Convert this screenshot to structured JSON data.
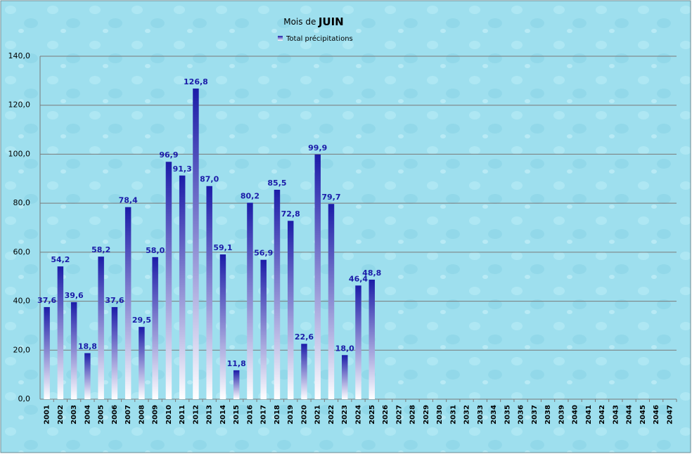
{
  "chart_data": {
    "type": "bar",
    "title": [
      "Mois de",
      "JUIN"
    ],
    "categories": [
      "2001",
      "2002",
      "2003",
      "2004",
      "2005",
      "2006",
      "2007",
      "2008",
      "2009",
      "2010",
      "2011",
      "2012",
      "2013",
      "2014",
      "2015",
      "2016",
      "2017",
      "2018",
      "2019",
      "2020",
      "2021",
      "2022",
      "2023",
      "2024",
      "2025",
      "2026",
      "2027",
      "2028",
      "2029",
      "2030",
      "2031",
      "2032",
      "2033",
      "2034",
      "2035",
      "2036",
      "2037",
      "2038",
      "2039",
      "2040",
      "2041",
      "2042",
      "2043",
      "2044",
      "2045",
      "2046",
      "2047"
    ],
    "series": [
      {
        "name": "Total précipitations",
        "color": "#1c1ca8",
        "values": [
          37.6,
          54.2,
          39.6,
          18.8,
          58.2,
          37.6,
          78.4,
          29.5,
          58.0,
          96.9,
          91.3,
          126.8,
          87.0,
          59.1,
          11.8,
          80.2,
          56.9,
          85.5,
          72.8,
          22.6,
          99.9,
          79.7,
          18.0,
          46.4,
          48.8,
          null,
          null,
          null,
          null,
          null,
          null,
          null,
          null,
          null,
          null,
          null,
          null,
          null,
          null,
          null,
          null,
          null,
          null,
          null,
          null,
          null,
          null
        ],
        "value_labels": [
          "37,6",
          "54,2",
          "39,6",
          "18,8",
          "58,2",
          "37,6",
          "78,4",
          "29,5",
          "58,0",
          "96,9",
          "91,3",
          "126,8",
          "87,0",
          "59,1",
          "11,8",
          "80,2",
          "56,9",
          "85,5",
          "72,8",
          "22,6",
          "99,9",
          "79,7",
          "18,0",
          "46,4",
          "48,8",
          null,
          null,
          null,
          null,
          null,
          null,
          null,
          null,
          null,
          null,
          null,
          null,
          null,
          null,
          null,
          null,
          null,
          null,
          null,
          null,
          null,
          null
        ]
      }
    ],
    "ylim": [
      0,
      140
    ],
    "yticks": [
      {
        "value": 0,
        "label": "0,0"
      },
      {
        "value": 20,
        "label": "20,0"
      },
      {
        "value": 40,
        "label": "40,0"
      },
      {
        "value": 60,
        "label": "60,0"
      },
      {
        "value": 80,
        "label": "80,0"
      },
      {
        "value": 100,
        "label": "100,0"
      },
      {
        "value": 120,
        "label": "120,0"
      },
      {
        "value": 140,
        "label": "140,0"
      }
    ],
    "grid": true
  }
}
